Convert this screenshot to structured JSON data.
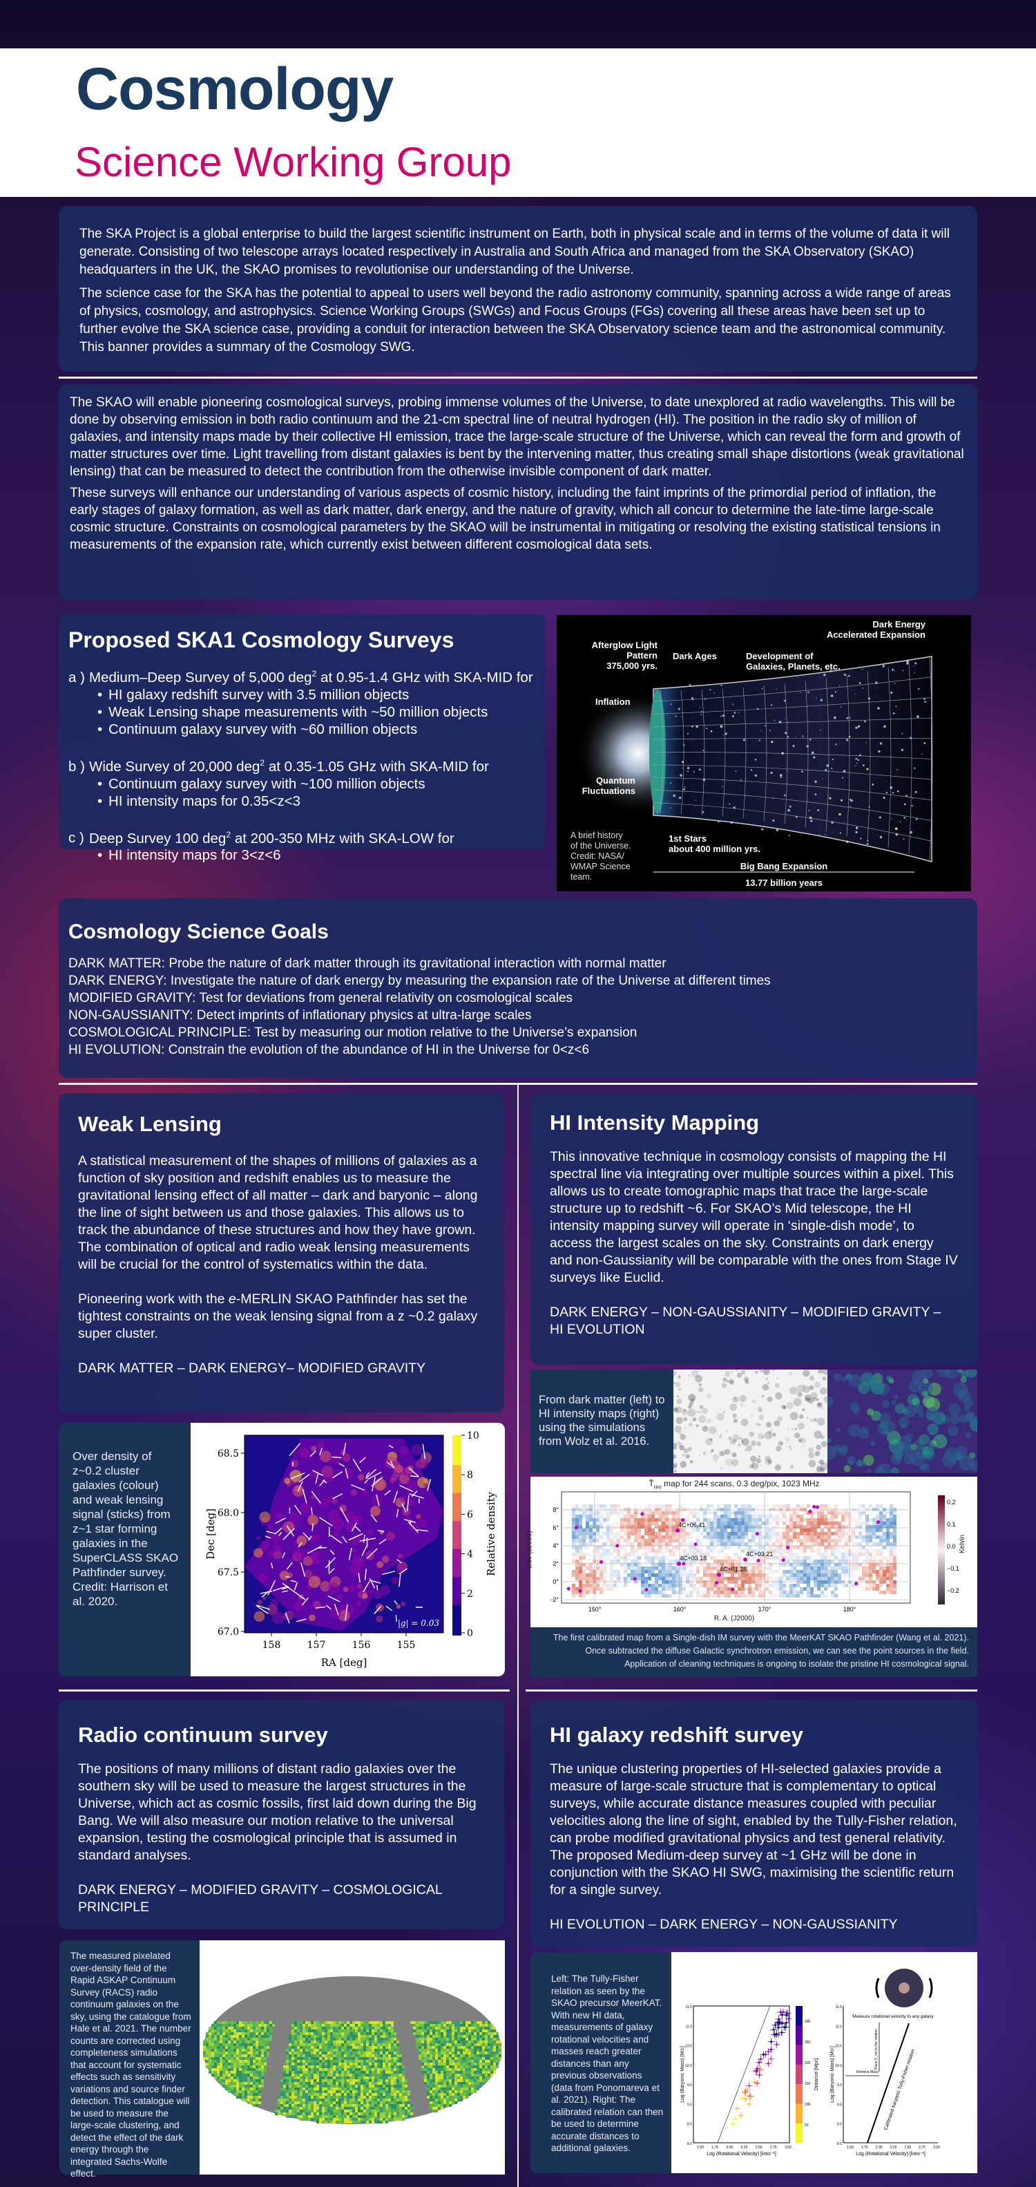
{
  "header": {
    "title": "Cosmology",
    "subtitle": "Science Working Group"
  },
  "intro": {
    "paragraphs": [
      "The SKA Project is a global enterprise to build the largest scientific instrument on Earth, both in physical scale and in terms of the volume of data it will generate. Consisting of two telescope arrays located respectively in Australia and South Africa and managed from the SKA Observatory (SKAO) headquarters in the UK, the SKAO promises to revolutionise our understanding of the Universe.",
      "The science case for the SKA has the potential to appeal to users well beyond the radio astronomy community, spanning across a wide range of areas of physics, cosmology, and astrophysics. Science Working Groups (SWGs) and Focus Groups (FGs) covering all these areas have been set up to further evolve the SKA science case, providing a conduit for interaction between the SKA Observatory science team and the astronomical community. This banner provides a summary of the Cosmology SWG."
    ]
  },
  "overview": {
    "paragraphs": [
      "The SKAO will enable pioneering cosmological surveys, probing immense volumes of the Universe, to date unexplored at radio wavelengths. This will be done by observing emission in both radio continuum and the 21-cm spectral line of neutral hydrogen (HI). The position in the radio sky of million of galaxies, and intensity maps made by their collective HI emission, trace the large-scale structure of the Universe, which can reveal the form and growth of matter structures over time. Light travelling from distant galaxies is bent by the intervening matter, thus creating small shape distortions (weak gravitational lensing) that can be measured to detect the contribution from the otherwise invisible component of dark matter.",
      "These surveys will enhance our understanding of various aspects of cosmic history, including the faint imprints of the primordial period of inflation, the early stages of galaxy formation, as well as dark matter, dark energy, and the nature of gravity, which all concur to determine the late-time large-scale cosmic structure. Constraints on cosmological parameters by the SKAO will be instrumental in mitigating or resolving the existing statistical tensions in measurements of the expansion rate, which currently exist between different cosmological data sets."
    ]
  },
  "surveys": {
    "title": "Proposed SKA1 Cosmology Surveys",
    "items": [
      {
        "label": "a )",
        "before": "Medium–Deep Survey of 5,000 deg",
        "sup": "2",
        "after": " at 0.95-1.4 GHz with SKA-MID for",
        "bullets": [
          "HI galaxy redshift survey with 3.5 million objects",
          "Weak Lensing shape measurements with ~50 million objects",
          "Continuum galaxy survey with ~60 million objects"
        ]
      },
      {
        "label": "b )",
        "before": "Wide Survey of 20,000 deg",
        "sup": "2",
        "after": " at 0.35-1.05 GHz with SKA-MID for",
        "bullets": [
          "Continuum galaxy survey with ~100 million objects",
          "HI intensity maps for 0.35<z<3"
        ]
      },
      {
        "label": "c )",
        "before": "Deep Survey 100 deg",
        "sup": "2",
        "after": " at 200-350 MHz with SKA-LOW for",
        "bullets": [
          "HI intensity maps for 3<z<6"
        ]
      }
    ]
  },
  "timeline": {
    "dark_energy": [
      "Dark Energy",
      "Accelerated Expansion"
    ],
    "afterglow": [
      "Afterglow Light",
      "Pattern",
      "375,000 yrs."
    ],
    "dark_ages": "Dark Ages",
    "development": [
      "Development of",
      "Galaxies, Planets, etc."
    ],
    "inflation": "Inflation",
    "quantum": [
      "Quantum",
      "Fluctuations"
    ],
    "first_stars": [
      "1st Stars",
      "about 400 million yrs."
    ],
    "expansion": "Big Bang Expansion",
    "age": "13.77 billion years",
    "caption": [
      "A brief history",
      "of the Universe.",
      "Credit: NASA/",
      "WMAP Science",
      "team."
    ]
  },
  "goals": {
    "title": "Cosmology Science Goals",
    "items": [
      "DARK MATTER: Probe the nature of dark matter through its gravitational interaction with normal matter",
      "DARK ENERGY: Investigate the nature of dark energy by measuring the expansion rate of the Universe at different times",
      "MODIFIED GRAVITY: Test for deviations from general relativity on cosmological scales",
      "NON-GAUSSIANITY: Detect imprints of inflationary physics at ultra-large scales",
      "COSMOLOGICAL PRINCIPLE: Test by measuring our motion relative to the Universe’s expansion",
      "HI EVOLUTION: Constrain the evolution of the abundance of HI in the Universe for 0<z<6"
    ]
  },
  "weak_lensing": {
    "title": "Weak Lensing",
    "text": "A statistical measurement of the shapes of millions of galaxies as a function of sky position and redshift enables us to measure the gravitational lensing effect of all matter – dark and baryonic – along the line of sight between us and those galaxies. This allows us to track the abundance of these structures and how they have grown. The combination of optical and radio weak lensing measurements will be crucial for the control of systematics within the data.",
    "pioneer_before": "Pioneering work with the ",
    "pioneer_italic": "e",
    "pioneer_after": "-MERLIN SKAO Pathfinder has set the tightest constraints on the weak lensing signal from a z ~0.2 galaxy super cluster.",
    "keywords": "DARK MATTER – DARK ENERGY– MODIFIED GRAVITY",
    "figure": {
      "caption": "Over density of z~0.2 cluster galaxies (colour) and weak lensing signal (sticks) from z~1 star forming galaxies in the SuperCLASS SKAO Pathfinder survey. Credit: Harrison et al. 2020.",
      "xlabel": "RA [deg]",
      "ylabel": "Dec [deg]",
      "xticks": [
        "158",
        "157",
        "156",
        "155"
      ],
      "yticks": [
        "68.5",
        "68.0",
        "67.5",
        "67.0"
      ],
      "cbar_label": "Relative density",
      "cbar_ticks": [
        "10",
        "8",
        "6",
        "4",
        "2",
        "0"
      ],
      "legend": "|g| = 0.03"
    }
  },
  "hi_im": {
    "title": "HI Intensity Mapping",
    "text": "This innovative technique in cosmology consists of mapping the HI spectral line via integrating over multiple sources within a pixel. This allows us to create tomographic maps that trace the large-scale structure up to redshift ~6. For SKAO’s Mid telescope, the HI intensity mapping survey will operate in ‘single-dish mode’, to access the largest scales on the sky. Constraints on dark energy and non-Gaussianity will be comparable with the ones from Stage IV surveys like Euclid.",
    "keywords": "DARK ENERGY – NON-GAUSSIANITY – MODIFIED GRAVITY – HI EVOLUTION",
    "sim_caption": "From dark matter (left) to HI intensity maps (right) using the simulations from Wolz et al. 2016.",
    "map": {
      "title_symbol": "T̄",
      "title_sub": "res",
      "title_rest": " map for 244 scans, 0.3 deg/pix, 1023 MHz",
      "xlabel": "R. A. (J2000)",
      "ylabel": "Dec (J2000)",
      "xticks": [
        "150°",
        "160°",
        "170°",
        "180°"
      ],
      "yticks": [
        "8°",
        "6°",
        "4°",
        "2°",
        "0°",
        "-2°"
      ],
      "sources": [
        "4C+06.41",
        "4C+03.18",
        "4C+03.21",
        "4C+01.28"
      ],
      "cbar_ticks": [
        "0.2",
        "0.1",
        "0.0",
        "−0.1",
        "−0.2"
      ],
      "cbar_label": "Kelvin"
    },
    "caption": [
      "The first calibrated map from a Single-dish IM survey with the MeerKAT SKAO Pathfinder (Wang et al. 2021).",
      "Once subtracted the diffuse Galactic synchrotron emission, we can see the point sources in the field.",
      "Application of cleaning techniques is ongoing to isolate the pristine HI cosmological signal."
    ]
  },
  "radio": {
    "title": "Radio continuum survey",
    "text": "The positions of many millions of distant radio galaxies over the southern sky will be used to measure the largest structures in the Universe, which act as cosmic fossils, first laid down during the Big Bang. We will also measure our motion relative to the universal expansion, testing the cosmological principle that is assumed in standard analyses.",
    "keywords": "DARK ENERGY – MODIFIED GRAVITY – COSMOLOGICAL PRINCIPLE",
    "caption": "The measured pixelated over-density field of the Rapid ASKAP Continuum Survey (RACS) radio continuum galaxies on the sky, using the catalogue from Hale et al. 2021. The number counts are corrected using completeness simulations that account for systematic effects such as sensitivity variations and source finder detection. This catalogue will be used to measure the large-scale clustering, and detect the effect of the dark energy through the integrated Sachs-Wolfe effect."
  },
  "hi_galaxy": {
    "title": "HI galaxy redshift survey",
    "text": "The unique clustering properties of HI-selected galaxies provide a measure of large-scale structure that is complementary to optical surveys, while accurate distance measures coupled with peculiar velocities along the line of sight, enabled by the Tully-Fisher relation, can probe modified gravitational physics and test general relativity. The proposed Medium-deep survey at ~1 GHz will be done in conjunction with the SKAO HI SWG, maximising the scientific return for a single survey.",
    "keywords": "HI EVOLUTION – DARK ENERGY – NON-GAUSSIANITY",
    "caption": "Left: The Tully-Fisher relation as seen by the SKAO precursor MeerKAT. With new HI data, measurements of galaxy rotational velocities and masses reach greater distances than any previous observations (data from Ponomareva et al. 2021). Right: The calibrated relation can then be used to determine accurate distances to additional galaxies.",
    "tf": {
      "xlabel": "Log (Rotational Velocity) [kms⁻¹]",
      "ylabel": "Log (Baryonic Mass) [M⊙]",
      "xticks": [
        "1.50",
        "1.75",
        "2.00",
        "2.25",
        "2.50",
        "2.75",
        "3.00"
      ],
      "yticks": [
        "11.5",
        "11.0",
        "10.5",
        "10.0",
        "9.5",
        "9.0",
        "8.5",
        "8.0"
      ],
      "cbar_label": "Distance [Mpc]",
      "cbar_ticks": [
        "300",
        "250",
        "200",
        "150",
        "100",
        "50"
      ],
      "measure": "Measure rotational velocity to any galaxy",
      "place": "Place V_rot on the relation",
      "retrieve": "Retrieve Mass",
      "relation": "Calibrated baryonic Tully-Fisher relation"
    }
  },
  "colors": {
    "title": "#1c3a5e",
    "subtitle": "#d4006c",
    "panel": "#1c2a62",
    "caption_panel": "#1c3358"
  }
}
